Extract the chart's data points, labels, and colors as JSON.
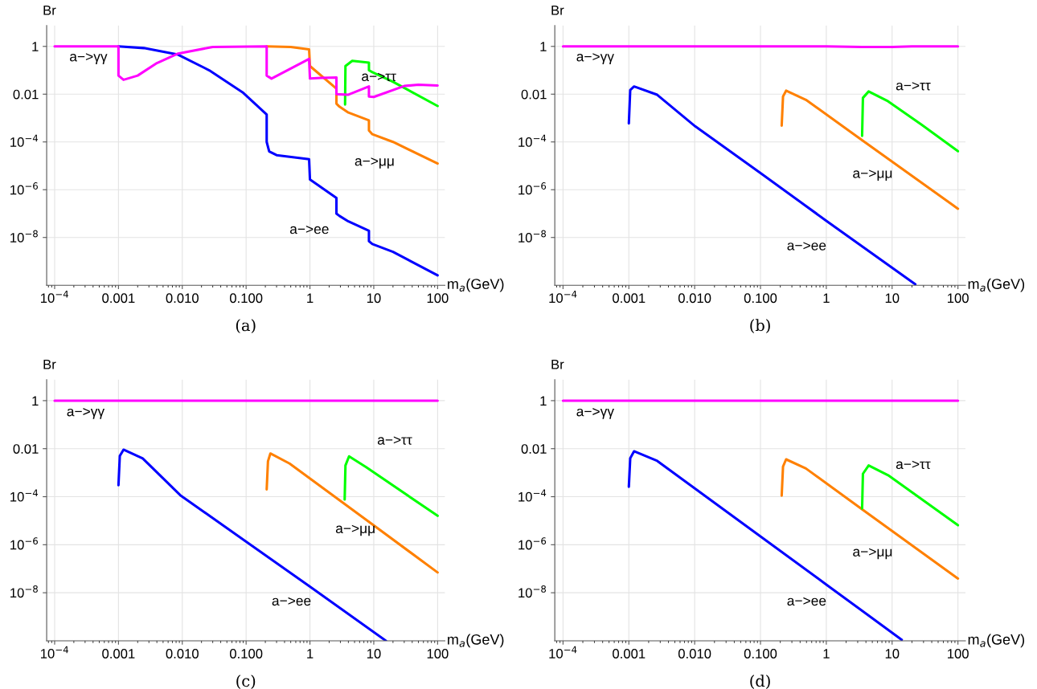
{
  "chart_data": [
    {
      "type": "line",
      "xlabel": "m$_{a}$(GeV)",
      "ylabel": "Br",
      "log": "xy",
      "grid": true,
      "xlim": [
        7.5e-05,
        130
      ],
      "ylim": [
        1e-10,
        7.5
      ],
      "xticks": [
        {
          "value": 0.0001,
          "label": "10$^{−4}$"
        },
        {
          "value": 0.001,
          "label": "0.001"
        },
        {
          "value": 0.01,
          "label": "0.010"
        },
        {
          "value": 0.1,
          "label": "0.100"
        },
        1,
        10,
        100
      ],
      "yticks": [
        {
          "value": 1e-08,
          "label": "10$^{−8}$"
        },
        {
          "value": 1e-06,
          "label": "10$^{−6}$"
        },
        {
          "value": 0.0001,
          "label": "10$^{−4}$"
        },
        0.01,
        1
      ],
      "series": [
        {
          "color": "#0000ff",
          "x": [
            0.001,
            0.0025,
            0.0086,
            0.0264,
            0.088,
            0.21,
            0.21,
            0.23,
            0.3,
            0.97,
            1.0,
            2.6,
            2.6,
            2.9,
            4,
            8.4,
            8.4,
            9.5,
            20,
            100
          ],
          "values": [
            1,
            0.85,
            0.45,
            0.1,
            0.012,
            0.0014,
            0.0001,
            4e-05,
            2.8e-05,
            1.9e-05,
            2.7e-06,
            4.5e-07,
            1e-07,
            8e-08,
            4.7e-08,
            1.9e-08,
            7e-09,
            5.3e-09,
            2.5e-09,
            2.6e-10
          ]
        },
        {
          "color": "#ff8000",
          "x": [
            0.21,
            0.5,
            0.97,
            1.0,
            2.6,
            2.6,
            2.9,
            4,
            8.4,
            8.4,
            9.5,
            20,
            100
          ],
          "values": [
            1,
            0.95,
            0.75,
            0.15,
            0.017,
            0.004,
            0.003,
            0.0017,
            0.0008,
            0.0003,
            0.00021,
            0.0001,
            1.25e-05
          ]
        },
        {
          "color": "#00ff00",
          "x": [
            3.55,
            3.6,
            4.6,
            8.4,
            8.4,
            9.5,
            20,
            100
          ],
          "values": [
            0.0037,
            0.15,
            0.25,
            0.21,
            0.1,
            0.083,
            0.033,
            0.0032
          ]
        },
        {
          "color": "#ff00ff",
          "x": [
            0.0001,
            0.001,
            0.001,
            0.0012,
            0.002,
            0.004,
            0.0086,
            0.03,
            0.21,
            0.21,
            0.25,
            0.97,
            1.0,
            1.5,
            2.6,
            2.6,
            4,
            8.4,
            8.4,
            10,
            30,
            50,
            100
          ],
          "values": [
            1,
            1,
            0.06,
            0.04,
            0.06,
            0.2,
            0.5,
            0.95,
            1,
            0.06,
            0.045,
            0.3,
            0.045,
            0.048,
            0.05,
            0.01,
            0.0095,
            0.021,
            0.008,
            0.0076,
            0.022,
            0.025,
            0.023
          ]
        }
      ],
      "annotations": [
        "a−>γγ",
        "a−>ττ",
        "a−>μμ",
        "a−>ee",
        "(a)"
      ]
    },
    {
      "type": "line",
      "xlabel": "m$_{a}$(GeV)",
      "ylabel": "Br",
      "log": "xy",
      "grid": true,
      "xlim": [
        7.5e-05,
        130
      ],
      "ylim": [
        1e-10,
        7.5
      ],
      "xticks": [
        {
          "value": 0.0001,
          "label": "10$^{−4}$"
        },
        {
          "value": 0.001,
          "label": "0.001"
        },
        {
          "value": 0.01,
          "label": "0.010"
        },
        {
          "value": 0.1,
          "label": "0.100"
        },
        1,
        10,
        100
      ],
      "yticks": [
        {
          "value": 1e-08,
          "label": "10$^{−8}$"
        },
        {
          "value": 1e-06,
          "label": "10$^{−6}$"
        },
        {
          "value": 0.0001,
          "label": "10$^{−4}$"
        },
        0.01,
        1
      ],
      "series": [
        {
          "color": "#0000ff",
          "x": [
            0.001,
            0.00105,
            0.0012,
            0.0027,
            0.0102,
            0.1,
            1,
            22.5
          ],
          "values": [
            0.0006,
            0.015,
            0.021,
            0.0094,
            0.00045,
            5e-06,
            5e-08,
            1.1e-10
          ]
        },
        {
          "color": "#ff8000",
          "x": [
            0.21,
            0.22,
            0.245,
            0.49,
            3.1,
            100
          ],
          "values": [
            0.00048,
            0.008,
            0.014,
            0.0058,
            0.00015,
            1.6e-07
          ]
        },
        {
          "color": "#00ff00",
          "x": [
            3.5,
            3.6,
            4.4,
            8.7,
            28,
            100
          ],
          "values": [
            0.00018,
            0.007,
            0.013,
            0.005,
            0.00053,
            4.1e-05
          ]
        },
        {
          "color": "#ff00ff",
          "x": [
            0.0001,
            0.001,
            1,
            3.5,
            10,
            20,
            100
          ],
          "values": [
            1,
            1,
            1,
            0.95,
            0.95,
            1,
            1
          ]
        }
      ],
      "annotations": [
        "a−>γγ",
        "a−>ττ",
        "a−>μμ",
        "a−>ee",
        "(b)"
      ]
    },
    {
      "type": "line",
      "xlabel": "m$_{a}$(GeV)",
      "ylabel": "Br",
      "log": "xy",
      "grid": true,
      "xlim": [
        7.5e-05,
        130
      ],
      "ylim": [
        1e-10,
        7.5
      ],
      "xticks": [
        {
          "value": 0.0001,
          "label": "10$^{−4}$"
        },
        {
          "value": 0.001,
          "label": "0.001"
        },
        {
          "value": 0.01,
          "label": "0.010"
        },
        {
          "value": 0.1,
          "label": "0.100"
        },
        1,
        10,
        100
      ],
      "yticks": [
        {
          "value": 1e-08,
          "label": "10$^{−8}$"
        },
        {
          "value": 1e-06,
          "label": "10$^{−6}$"
        },
        {
          "value": 0.0001,
          "label": "10$^{−4}$"
        },
        0.01,
        1
      ],
      "series": [
        {
          "color": "#0000ff",
          "x": [
            0.001,
            0.00105,
            0.0012,
            0.0024,
            0.0093,
            0.1,
            1,
            15.5
          ],
          "values": [
            0.0003,
            0.005,
            0.0091,
            0.0039,
            0.000115,
            1.35e-06,
            1.8e-08,
            1e-10
          ]
        },
        {
          "color": "#ff8000",
          "x": [
            0.21,
            0.22,
            0.24,
            0.48,
            10,
            100
          ],
          "values": [
            0.0002,
            0.003,
            0.0063,
            0.0024,
            6.4e-06,
            7e-08
          ]
        },
        {
          "color": "#00ff00",
          "x": [
            3.5,
            3.6,
            4.1,
            7.6,
            100
          ],
          "values": [
            7.6e-05,
            0.002,
            0.0048,
            0.0017,
            1.6e-05
          ]
        },
        {
          "color": "#ff00ff",
          "x": [
            0.0001,
            0.001,
            1,
            100
          ],
          "values": [
            1,
            1,
            1,
            1
          ]
        }
      ],
      "annotations": [
        "a−>γγ",
        "a−>ττ",
        "a−>μμ",
        "a−>ee",
        "(c)"
      ]
    },
    {
      "type": "line",
      "xlabel": "m$_{a}$(GeV)",
      "ylabel": "Br",
      "log": "xy",
      "grid": true,
      "xlim": [
        7.5e-05,
        130
      ],
      "ylim": [
        1e-10,
        7.5
      ],
      "xticks": [
        {
          "value": 0.0001,
          "label": "10$^{−4}$"
        },
        {
          "value": 0.001,
          "label": "0.001"
        },
        {
          "value": 0.01,
          "label": "0.010"
        },
        {
          "value": 0.1,
          "label": "0.100"
        },
        1,
        10,
        100
      ],
      "yticks": [
        {
          "value": 1e-08,
          "label": "10$^{−8}$"
        },
        {
          "value": 1e-06,
          "label": "10$^{−6}$"
        },
        {
          "value": 0.0001,
          "label": "10$^{−4}$"
        },
        0.01,
        1
      ],
      "series": [
        {
          "color": "#0000ff",
          "x": [
            0.001,
            0.00105,
            0.0012,
            0.0027,
            0.1,
            1,
            14
          ],
          "values": [
            0.00026,
            0.004,
            0.0078,
            0.0031,
            2.2e-06,
            2.2e-08,
            1.1e-10
          ]
        },
        {
          "color": "#ff8000",
          "x": [
            0.21,
            0.22,
            0.245,
            0.49,
            3.5,
            100
          ],
          "values": [
            0.00011,
            0.0018,
            0.0036,
            0.0015,
            3e-05,
            3.9e-08
          ]
        },
        {
          "color": "#00ff00",
          "x": [
            3.5,
            3.6,
            4.4,
            8.7,
            100
          ],
          "values": [
            3.2e-05,
            0.0009,
            0.002,
            0.00078,
            6.5e-06
          ]
        },
        {
          "color": "#ff00ff",
          "x": [
            0.0001,
            0.001,
            1,
            100
          ],
          "values": [
            1,
            1,
            1,
            1
          ]
        }
      ],
      "annotations": [
        "a−>γγ",
        "a−>ττ",
        "a−>μμ",
        "a−>ee",
        "(d)"
      ]
    }
  ]
}
